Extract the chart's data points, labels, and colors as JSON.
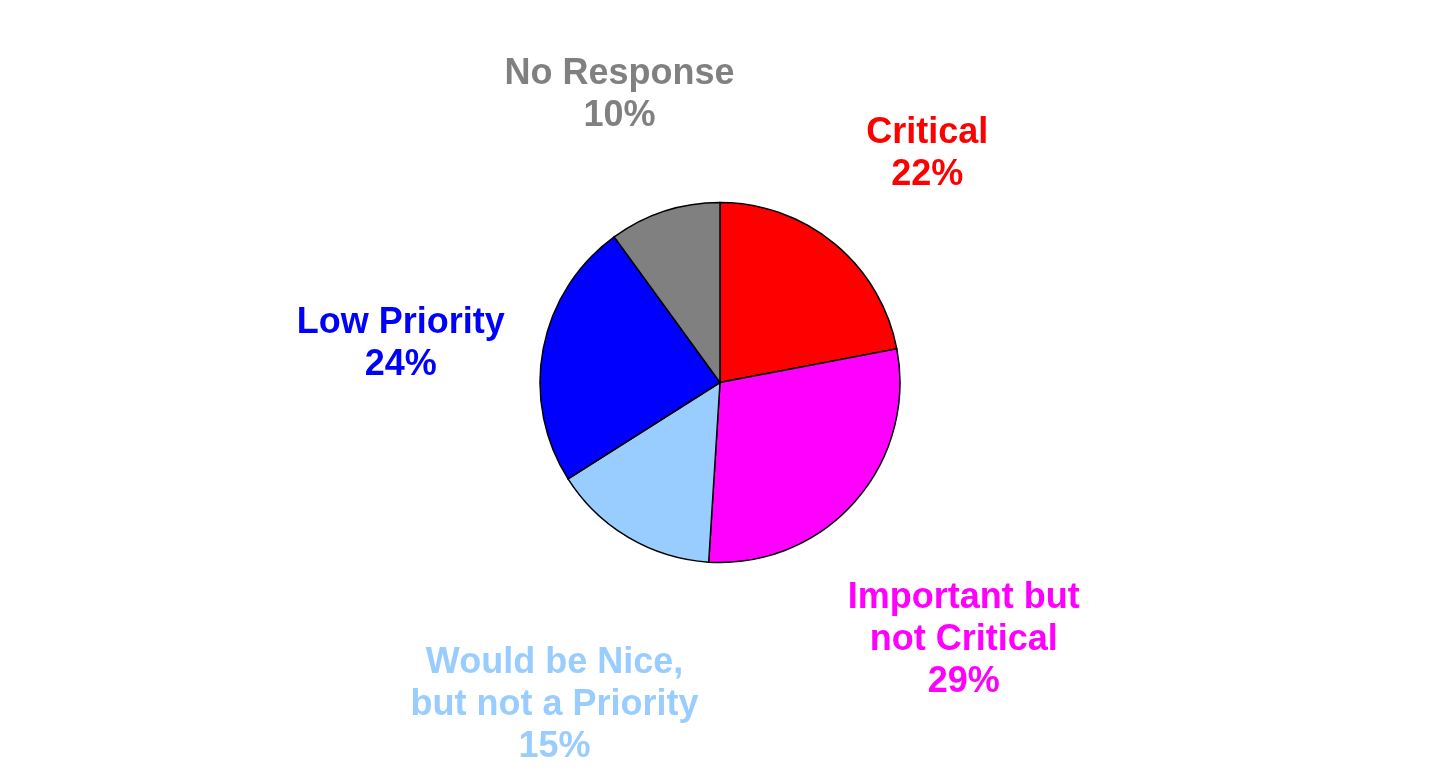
{
  "chart_data": {
    "type": "pie",
    "categories": [
      "Critical",
      "Important but not Critical",
      "Would be Nice, but not a Priority",
      "Low Priority",
      "No Response"
    ],
    "values": [
      22,
      29,
      15,
      24,
      10
    ],
    "value_labels": [
      "22%",
      "29%",
      "15%",
      "24%",
      "10%"
    ],
    "colors": [
      "#ff0000",
      "#ff00ff",
      "#99ccff",
      "#0000ff",
      "#808080"
    ]
  }
}
